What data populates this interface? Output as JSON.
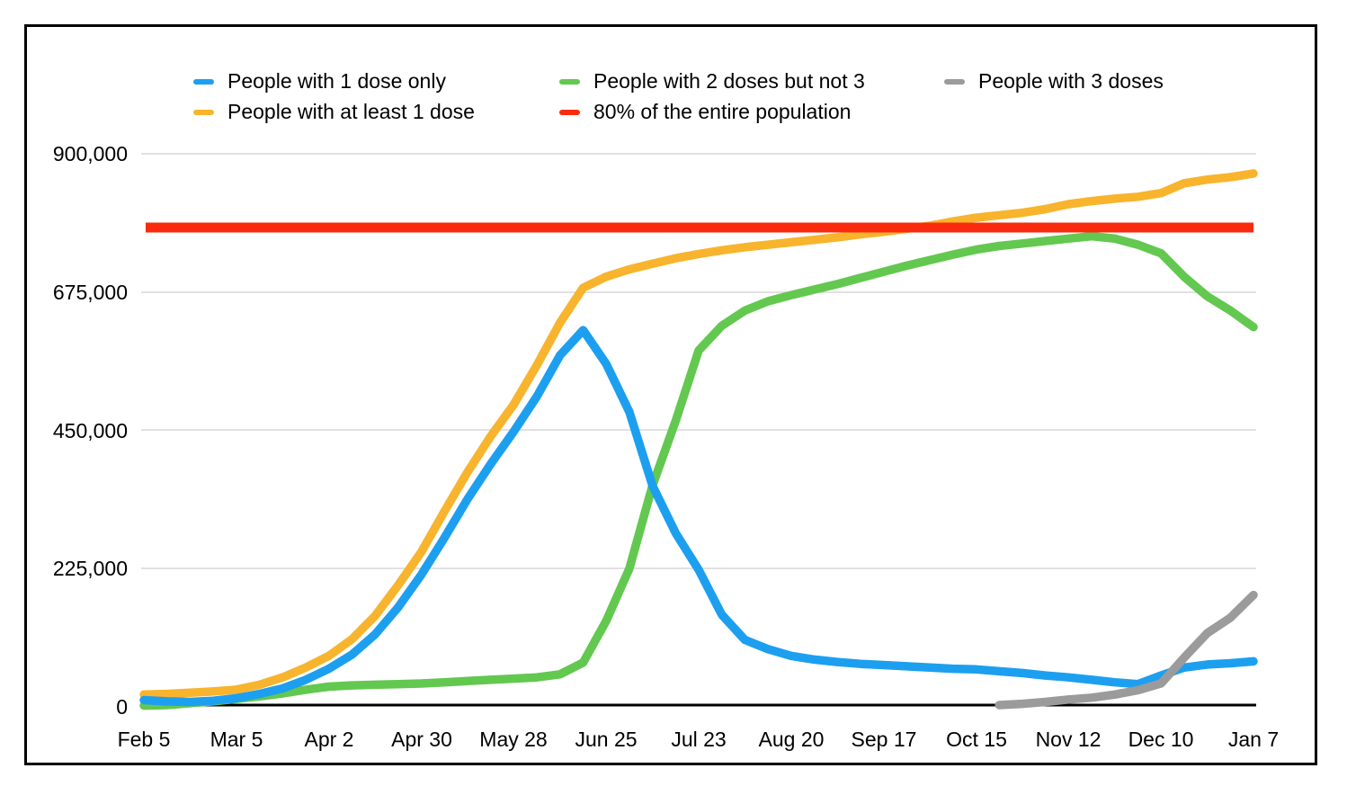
{
  "legend": {
    "items": [
      {
        "label": "People with 1 dose only",
        "color": "#1D9FF0"
      },
      {
        "label": "People with 2 doses but not 3",
        "color": "#63C84F"
      },
      {
        "label": "People with 3 doses",
        "color": "#9B9B9B"
      },
      {
        "label": "People with at least 1 dose",
        "color": "#F8B42C"
      },
      {
        "label": "80% of the entire population",
        "color": "#FA2B0C"
      }
    ]
  },
  "chart_data": {
    "type": "line",
    "x_interval": "weekly",
    "x_tick_labels": [
      "Feb 5",
      "Mar 5",
      "Apr 2",
      "Apr 30",
      "May 28",
      "Jun 25",
      "Jul 23",
      "Aug 20",
      "Sep 17",
      "Oct 15",
      "Nov 12",
      "Dec 10",
      "Jan 7"
    ],
    "y_tick_labels": [
      "0",
      "225,000",
      "450,000",
      "675,000",
      "900,000"
    ],
    "y_ticks": [
      0,
      225000,
      450000,
      675000,
      900000
    ],
    "ylim": [
      0,
      900000
    ],
    "grid": "horizontal-only",
    "legend_position": "top",
    "series": [
      {
        "id": "two-doses-not-three",
        "name": "People with 2 doses but not 3",
        "color": "#63C84F",
        "start_week": 0,
        "values": [
          2000,
          3000,
          6000,
          9000,
          13000,
          17000,
          22000,
          28000,
          33000,
          35000,
          36000,
          37000,
          38000,
          40000,
          42000,
          44000,
          46000,
          48000,
          53000,
          72000,
          140000,
          225000,
          360000,
          465000,
          580000,
          620000,
          645000,
          660000,
          670000,
          679000,
          688000,
          698000,
          708000,
          718000,
          727000,
          736000,
          744000,
          750000,
          754000,
          758000,
          762000,
          766000,
          762000,
          752000,
          738000,
          700000,
          668000,
          645000,
          618000
        ]
      },
      {
        "id": "at-least-one-dose",
        "name": "People with at least 1 dose",
        "color": "#F8B42C",
        "start_week": 0,
        "values": [
          20000,
          21000,
          23000,
          25000,
          28000,
          36000,
          48000,
          64000,
          83000,
          110000,
          148000,
          198000,
          252000,
          318000,
          382000,
          440000,
          492000,
          556000,
          625000,
          682000,
          700000,
          712000,
          721000,
          730000,
          737000,
          743000,
          748000,
          752000,
          756000,
          760000,
          764000,
          769000,
          773000,
          778000,
          783000,
          790000,
          796000,
          800000,
          804000,
          810000,
          818000,
          823000,
          827000,
          830000,
          836000,
          852000,
          858000,
          862000,
          868000
        ]
      },
      {
        "id": "one-dose-only",
        "name": "People with 1 dose only",
        "color": "#1D9FF0",
        "start_week": 0,
        "values": [
          11000,
          9000,
          8000,
          10000,
          14000,
          21000,
          30000,
          44000,
          62000,
          85000,
          118000,
          162000,
          215000,
          275000,
          338000,
          395000,
          448000,
          505000,
          572000,
          613000,
          558000,
          480000,
          360000,
          283000,
          223000,
          150000,
          109000,
          94000,
          83000,
          77000,
          73000,
          70000,
          68000,
          66000,
          64000,
          62000,
          61000,
          58000,
          55000,
          51000,
          48000,
          44000,
          40000,
          37000,
          51000,
          64000,
          69000,
          71000,
          74000
        ]
      },
      {
        "id": "population-80-percent",
        "name": "80% of the entire population",
        "color": "#FA2B0C",
        "hline": 780000
      },
      {
        "id": "three-doses",
        "name": "People with 3 doses",
        "color": "#9B9B9B",
        "start_week": 37,
        "values": [
          3000,
          5000,
          8000,
          12000,
          15000,
          20000,
          27000,
          38000,
          80000,
          120000,
          145000,
          182000
        ]
      }
    ]
  }
}
